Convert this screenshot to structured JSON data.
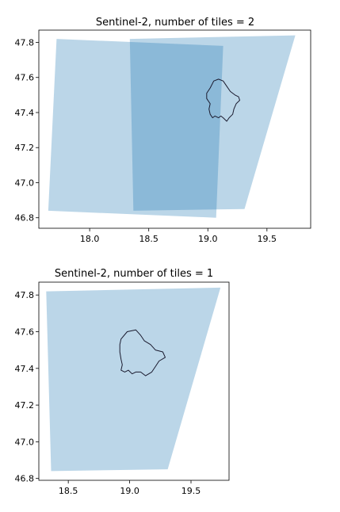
{
  "chart_data": [
    {
      "type": "area",
      "title": "Sentinel-2, number of tiles = 2",
      "xlabel": "",
      "ylabel": "",
      "xlim": [
        17.57,
        19.87
      ],
      "ylim": [
        46.74,
        47.87
      ],
      "xticks": [
        18.0,
        18.5,
        19.0,
        19.5
      ],
      "xtick_labels": [
        "18.0",
        "18.5",
        "19.0",
        "19.5"
      ],
      "yticks": [
        46.8,
        47.0,
        47.2,
        47.4,
        47.6,
        47.8
      ],
      "ytick_labels": [
        "46.8",
        "47.0",
        "47.2",
        "47.4",
        "47.6",
        "47.8"
      ],
      "grid": false,
      "series": [
        {
          "values": [
            [
              17.72,
              47.82
            ],
            [
              19.13,
              47.78
            ],
            [
              19.07,
              46.8
            ],
            [
              17.65,
              46.84
            ]
          ]
        },
        {
          "values": [
            [
              18.34,
              47.82
            ],
            [
              19.74,
              47.84
            ],
            [
              19.31,
              46.85
            ],
            [
              18.37,
              46.84
            ]
          ]
        }
      ],
      "outline": [
        [
          19.02,
          47.54
        ],
        [
          19.05,
          47.58
        ],
        [
          19.09,
          47.59
        ],
        [
          19.13,
          47.58
        ],
        [
          19.16,
          47.55
        ],
        [
          19.19,
          47.52
        ],
        [
          19.23,
          47.5
        ],
        [
          19.26,
          47.49
        ],
        [
          19.27,
          47.47
        ],
        [
          19.24,
          47.45
        ],
        [
          19.22,
          47.42
        ],
        [
          19.21,
          47.39
        ],
        [
          19.18,
          47.37
        ],
        [
          19.16,
          47.35
        ],
        [
          19.13,
          47.37
        ],
        [
          19.11,
          47.38
        ],
        [
          19.09,
          47.37
        ],
        [
          19.06,
          47.38
        ],
        [
          19.04,
          47.37
        ],
        [
          19.02,
          47.39
        ],
        [
          19.01,
          47.42
        ],
        [
          19.02,
          47.45
        ],
        [
          18.99,
          47.48
        ],
        [
          18.99,
          47.51
        ]
      ],
      "colors": {
        "fill": "#1f77b4",
        "fill_opacity": 0.3,
        "outline": "#1a1a2e"
      }
    },
    {
      "type": "area",
      "title": "Sentinel-2, number of tiles = 1",
      "xlabel": "",
      "ylabel": "",
      "xlim": [
        18.26,
        19.81
      ],
      "ylim": [
        46.79,
        47.87
      ],
      "xticks": [
        18.5,
        19.0,
        19.5
      ],
      "xtick_labels": [
        "18.5",
        "19.0",
        "19.5"
      ],
      "yticks": [
        46.8,
        47.0,
        47.2,
        47.4,
        47.6,
        47.8
      ],
      "ytick_labels": [
        "46.8",
        "47.0",
        "47.2",
        "47.4",
        "47.6",
        "47.8"
      ],
      "grid": false,
      "series": [
        {
          "values": [
            [
              18.32,
              47.82
            ],
            [
              19.74,
              47.84
            ],
            [
              19.31,
              46.85
            ],
            [
              18.36,
              46.84
            ]
          ]
        }
      ],
      "outline": [
        [
          18.93,
          47.56
        ],
        [
          18.98,
          47.6
        ],
        [
          19.05,
          47.61
        ],
        [
          19.09,
          47.58
        ],
        [
          19.12,
          47.55
        ],
        [
          19.17,
          47.53
        ],
        [
          19.21,
          47.5
        ],
        [
          19.27,
          47.49
        ],
        [
          19.29,
          47.46
        ],
        [
          19.24,
          47.44
        ],
        [
          19.21,
          47.41
        ],
        [
          19.18,
          47.38
        ],
        [
          19.13,
          47.36
        ],
        [
          19.09,
          47.38
        ],
        [
          19.05,
          47.38
        ],
        [
          19.02,
          47.37
        ],
        [
          18.99,
          47.39
        ],
        [
          18.96,
          47.38
        ],
        [
          18.93,
          47.39
        ],
        [
          18.94,
          47.42
        ],
        [
          18.93,
          47.45
        ],
        [
          18.92,
          47.49
        ],
        [
          18.92,
          47.53
        ]
      ],
      "colors": {
        "fill": "#1f77b4",
        "fill_opacity": 0.3,
        "outline": "#1a1a2e"
      }
    }
  ]
}
